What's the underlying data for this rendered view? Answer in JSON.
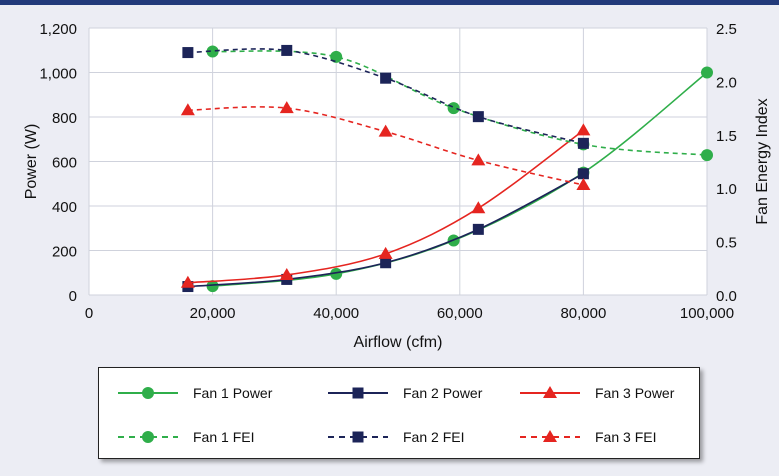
{
  "chart_data": {
    "type": "line",
    "xlabel": "Airflow (cfm)",
    "ylabel": "Power (W)",
    "y2label": "Fan Energy Index",
    "xlim": [
      0,
      100000
    ],
    "ylim": [
      0,
      1200
    ],
    "y2lim": [
      0,
      2.5
    ],
    "x_ticks": [
      "0",
      "20,000",
      "40,000",
      "60,000",
      "80,000",
      "100,000"
    ],
    "y_ticks": [
      "0",
      "200",
      "400",
      "600",
      "800",
      "1,000",
      "1,200"
    ],
    "y2_ticks": [
      "0.0",
      "0.5",
      "1.0",
      "1.5",
      "2.0",
      "2.5"
    ],
    "grid": true,
    "legend_position": "bottom",
    "colors": {
      "fan1": "#2fae4a",
      "fan2": "#1c2458",
      "fan3": "#e52520"
    },
    "series": [
      {
        "name": "Fan 1 Power",
        "axis": "left",
        "style": "solid",
        "marker": "circle",
        "color": "#2fae4a",
        "x": [
          20000,
          40000,
          59000,
          80000,
          100000
        ],
        "y": [
          40,
          95,
          245,
          550,
          1000
        ]
      },
      {
        "name": "Fan 2 Power",
        "axis": "left",
        "style": "solid",
        "marker": "square",
        "color": "#1c2458",
        "x": [
          16000,
          32000,
          48000,
          63000,
          80000
        ],
        "y": [
          38,
          70,
          145,
          295,
          545
        ]
      },
      {
        "name": "Fan 3 Power",
        "axis": "left",
        "style": "solid",
        "marker": "triangle",
        "color": "#e52520",
        "x": [
          16000,
          32000,
          48000,
          63000,
          80000
        ],
        "y": [
          55,
          90,
          185,
          390,
          740
        ]
      },
      {
        "name": "Fan 1 FEI",
        "axis": "right",
        "style": "dashed",
        "marker": "circle",
        "color": "#2fae4a",
        "x": [
          20000,
          40000,
          59000,
          80000,
          100000
        ],
        "y": [
          2.28,
          2.23,
          1.75,
          1.41,
          1.31
        ]
      },
      {
        "name": "Fan 2 FEI",
        "axis": "right",
        "style": "dashed",
        "marker": "square",
        "color": "#1c2458",
        "x": [
          16000,
          32000,
          48000,
          63000,
          80000
        ],
        "y": [
          2.27,
          2.29,
          2.03,
          1.67,
          1.42
        ]
      },
      {
        "name": "Fan 3 FEI",
        "axis": "right",
        "style": "dashed",
        "marker": "triangle",
        "color": "#e52520",
        "x": [
          16000,
          32000,
          48000,
          63000,
          80000
        ],
        "y": [
          1.73,
          1.75,
          1.53,
          1.26,
          1.03
        ]
      }
    ]
  }
}
